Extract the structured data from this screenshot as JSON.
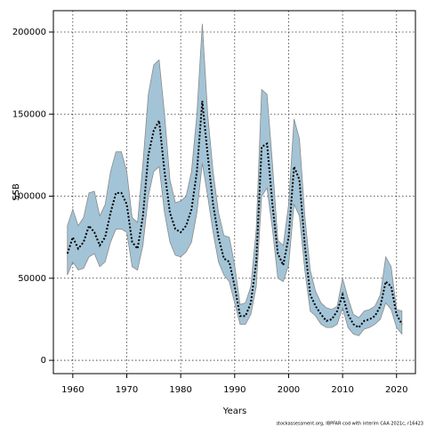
{
  "chart_data": {
    "type": "band-line",
    "ylabel": "SSB",
    "xlabel": "Years",
    "caption": "stockassessment.org, IBPFAR cod with interim CAA 2021c, r16423",
    "x": [
      1959,
      1960,
      1961,
      1962,
      1963,
      1964,
      1965,
      1966,
      1967,
      1968,
      1969,
      1970,
      1971,
      1972,
      1973,
      1974,
      1975,
      1976,
      1977,
      1978,
      1979,
      1980,
      1981,
      1982,
      1983,
      1984,
      1985,
      1986,
      1987,
      1988,
      1989,
      1990,
      1991,
      1992,
      1993,
      1994,
      1995,
      1996,
      1997,
      1998,
      1999,
      2000,
      2001,
      2002,
      2003,
      2004,
      2005,
      2006,
      2007,
      2008,
      2009,
      2010,
      2011,
      2012,
      2013,
      2014,
      2015,
      2016,
      2017,
      2018,
      2019,
      2020,
      2021
    ],
    "values": [
      65000,
      75000,
      68000,
      72000,
      82000,
      78000,
      70000,
      75000,
      90000,
      102000,
      102000,
      95000,
      72000,
      68000,
      88000,
      125000,
      140000,
      146000,
      115000,
      90000,
      80000,
      78000,
      82000,
      92000,
      115000,
      158000,
      125000,
      95000,
      75000,
      62000,
      60000,
      45000,
      27000,
      27000,
      35000,
      60000,
      130000,
      132000,
      95000,
      65000,
      58000,
      75000,
      118000,
      110000,
      70000,
      40000,
      33000,
      28000,
      24000,
      25000,
      30000,
      40000,
      28000,
      22000,
      20000,
      24000,
      25000,
      27000,
      33000,
      48000,
      45000,
      28000,
      22000
    ],
    "upper": [
      82000,
      92000,
      82000,
      87000,
      102000,
      103000,
      88000,
      95000,
      115000,
      127000,
      127000,
      115000,
      87000,
      84000,
      120000,
      162000,
      180000,
      183000,
      150000,
      110000,
      96000,
      97000,
      100000,
      115000,
      150000,
      205000,
      150000,
      115000,
      90000,
      76000,
      75000,
      58000,
      34000,
      35000,
      45000,
      80000,
      165000,
      162000,
      120000,
      73000,
      70000,
      95000,
      147000,
      135000,
      88000,
      55000,
      42000,
      35000,
      32000,
      31000,
      33000,
      50000,
      38000,
      28000,
      26000,
      30000,
      31000,
      33000,
      40000,
      63000,
      57000,
      31000,
      30000
    ],
    "lower": [
      52000,
      60000,
      55000,
      56000,
      63000,
      65000,
      57000,
      60000,
      72000,
      80000,
      80000,
      78000,
      57000,
      55000,
      70000,
      100000,
      115000,
      118000,
      90000,
      72000,
      64000,
      63000,
      66000,
      72000,
      90000,
      120000,
      100000,
      78000,
      60000,
      52000,
      48000,
      35000,
      22000,
      22000,
      28000,
      45000,
      100000,
      105000,
      80000,
      50000,
      48000,
      58000,
      95000,
      88000,
      55000,
      30000,
      27000,
      22000,
      20000,
      20000,
      22000,
      32000,
      20000,
      16000,
      15000,
      19000,
      20000,
      22000,
      25000,
      35000,
      31000,
      20000,
      16000
    ],
    "color": "#000000",
    "band_color": "#a3c4d6",
    "band_edge": "#8a8a8a",
    "xlim": [
      1956.4,
      2023.5
    ],
    "ylim": [
      -8100,
      213000
    ],
    "xticks": [
      1960,
      1970,
      1980,
      1990,
      2000,
      2010,
      2020
    ],
    "yticks": [
      0,
      50000,
      100000,
      150000,
      200000
    ],
    "grid": true
  }
}
